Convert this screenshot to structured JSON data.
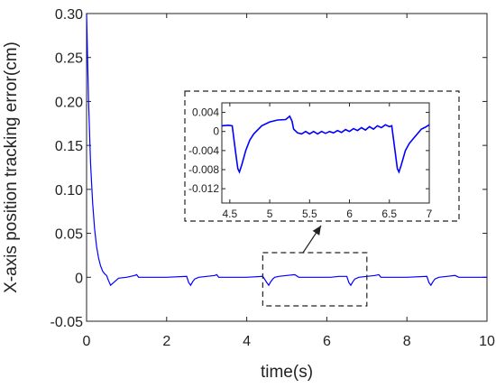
{
  "chart_data": [
    {
      "type": "line",
      "name": "main",
      "xlabel": "time(s)",
      "ylabel": "X-axis position tracking error(cm)",
      "xlim": [
        0,
        10
      ],
      "ylim": [
        -0.05,
        0.3
      ],
      "xticks": [
        0,
        2,
        4,
        6,
        8,
        10
      ],
      "xtick_labels": [
        "0",
        "2",
        "4",
        "6",
        "8",
        "10"
      ],
      "yticks": [
        -0.05,
        0,
        0.05,
        0.1,
        0.15,
        0.2,
        0.25,
        0.3
      ],
      "ytick_labels": [
        "-0.05",
        "0",
        "0.05",
        "0.10",
        "0.15",
        "0.20",
        "0.25",
        "0.30"
      ],
      "grid": false,
      "line_color": "#0000ff",
      "series": [
        {
          "x": [
            0,
            0.05,
            0.1,
            0.15,
            0.2,
            0.25,
            0.3,
            0.35,
            0.4,
            0.45,
            0.5,
            0.55,
            0.6,
            0.7,
            0.8,
            1.0,
            1.2,
            1.25,
            1.3,
            1.5,
            2.0,
            2.5,
            2.55,
            2.6,
            2.65,
            2.7,
            2.8,
            3.0,
            3.2,
            3.25,
            3.3,
            3.5,
            4.0,
            4.4,
            4.5,
            4.55,
            4.6,
            4.65,
            4.7,
            4.8,
            5.0,
            5.2,
            5.3,
            5.35,
            5.5,
            5.7,
            5.9,
            6.1,
            6.3,
            6.5,
            6.55,
            6.6,
            6.65,
            6.7,
            6.8,
            7.0,
            7.2,
            7.3,
            7.35,
            7.5,
            8.0,
            8.5,
            8.55,
            8.6,
            8.65,
            8.7,
            8.8,
            9.0,
            9.2,
            9.3,
            9.5,
            10.0
          ],
          "y": [
            0.3,
            0.2,
            0.13,
            0.085,
            0.055,
            0.035,
            0.022,
            0.013,
            0.007,
            0.004,
            0.002,
            -0.004,
            -0.009,
            -0.005,
            -0.001,
            0.0,
            0.002,
            0.003,
            0.0,
            0.0,
            0.0,
            0.001,
            -0.006,
            -0.009,
            -0.005,
            -0.002,
            0.0,
            0.001,
            0.002,
            0.003,
            0.0,
            0.0,
            0.0,
            0.001,
            -0.006,
            -0.009,
            -0.005,
            -0.002,
            0.0,
            0.001,
            0.002,
            0.003,
            0.0,
            0.0,
            0.0,
            0.0,
            0.0,
            0.0,
            0.001,
            0.001,
            -0.006,
            -0.009,
            -0.005,
            -0.002,
            0.0,
            0.001,
            0.002,
            0.003,
            0.0,
            0.0,
            0.0,
            0.001,
            -0.006,
            -0.009,
            -0.005,
            -0.002,
            0.0,
            0.001,
            0.002,
            0.0,
            0.0,
            0.0
          ]
        }
      ]
    },
    {
      "type": "line",
      "name": "inset",
      "xlabel": "",
      "ylabel": "",
      "xlim": [
        4.4,
        7.0
      ],
      "ylim": [
        -0.015,
        0.006
      ],
      "xticks": [
        4.5,
        5,
        5.5,
        6,
        6.5,
        7
      ],
      "xtick_labels": [
        "4.5",
        "5",
        "5.5",
        "6",
        "6.5",
        "7"
      ],
      "yticks": [
        0.004,
        0,
        -0.004,
        -0.008,
        -0.012
      ],
      "ytick_labels": [
        "0.004",
        "0",
        "-0.004",
        "-0.008",
        "-0.012"
      ],
      "grid": false,
      "line_color": "#0000ff",
      "series": [
        {
          "x": [
            4.4,
            4.48,
            4.53,
            4.57,
            4.6,
            4.62,
            4.65,
            4.7,
            4.75,
            4.8,
            4.9,
            5.0,
            5.1,
            5.2,
            5.25,
            5.28,
            5.3,
            5.35,
            5.4,
            5.45,
            5.5,
            5.55,
            5.6,
            5.65,
            5.7,
            5.75,
            5.8,
            5.85,
            5.9,
            5.95,
            6.0,
            6.05,
            6.1,
            6.15,
            6.2,
            6.25,
            6.3,
            6.35,
            6.4,
            6.45,
            6.5,
            6.53,
            6.57,
            6.6,
            6.62,
            6.65,
            6.7,
            6.75,
            6.8,
            6.9,
            6.95,
            7.0
          ],
          "y": [
            0.0012,
            0.0013,
            0.0012,
            -0.004,
            -0.0078,
            -0.0085,
            -0.007,
            -0.004,
            -0.0018,
            -0.0005,
            0.0012,
            0.002,
            0.0024,
            0.0025,
            0.0032,
            0.0022,
            0.0005,
            -0.0003,
            -0.0005,
            0.0,
            -0.0005,
            0.0,
            -0.0005,
            0.0,
            -0.0004,
            0.0,
            -0.0003,
            0.0002,
            -0.0002,
            0.0004,
            0.0,
            0.0006,
            0.0002,
            0.0008,
            0.0003,
            0.001,
            0.0005,
            0.0012,
            0.0008,
            0.0014,
            0.001,
            0.0012,
            -0.004,
            -0.0078,
            -0.0085,
            -0.007,
            -0.004,
            -0.0025,
            -0.0015,
            0.0005,
            0.0009,
            0.0014
          ]
        }
      ]
    }
  ]
}
